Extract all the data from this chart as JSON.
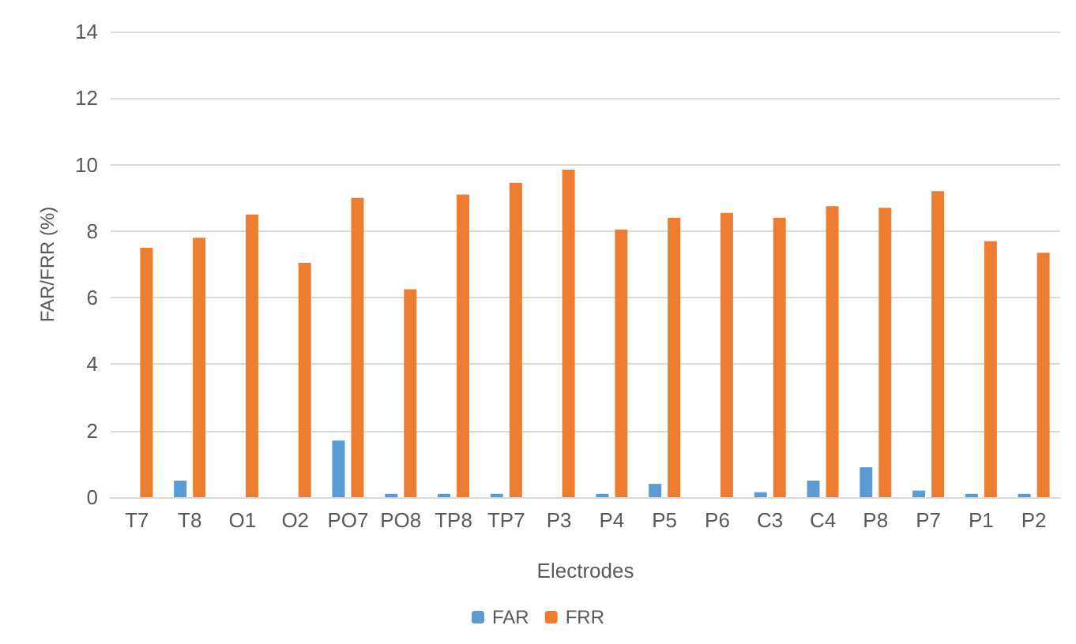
{
  "chart_data": {
    "type": "bar",
    "xlabel": "Electrodes",
    "ylabel": "FAR/FRR (%)",
    "categories": [
      "T7",
      "T8",
      "O1",
      "O2",
      "PO7",
      "PO8",
      "TP8",
      "TP7",
      "P3",
      "P4",
      "P5",
      "P6",
      "C3",
      "C4",
      "P8",
      "P7",
      "P1",
      "P2"
    ],
    "series": [
      {
        "name": "FAR",
        "color": "#5b9bd5",
        "values": [
          0,
          0.5,
          0,
          0,
          1.7,
          0.1,
          0.1,
          0.1,
          0,
          0.1,
          0.4,
          0,
          0.15,
          0.5,
          0.9,
          0.2,
          0.1,
          0.1
        ]
      },
      {
        "name": "FRR",
        "color": "#ed7d31",
        "values": [
          7.5,
          7.8,
          8.5,
          7.05,
          9.0,
          6.25,
          9.1,
          9.45,
          9.85,
          8.05,
          8.4,
          8.55,
          8.4,
          8.75,
          8.7,
          9.2,
          7.7,
          7.35
        ]
      }
    ],
    "ylim": [
      0,
      14
    ],
    "yticks": [
      0,
      2,
      4,
      6,
      8,
      10,
      12,
      14
    ],
    "grid": "y",
    "legend": "bottom"
  }
}
